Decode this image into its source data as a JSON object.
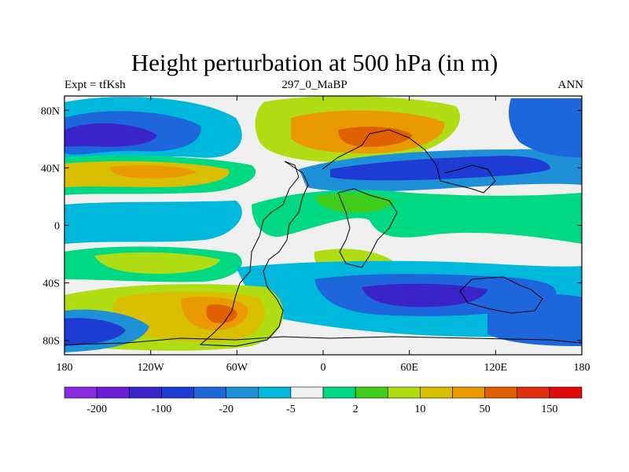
{
  "title": "Height perturbation at 500 hPa (in m)",
  "subtitle_left": "Expt = tfKsh",
  "subtitle_center": "297_0_MaBP",
  "subtitle_right": "ANN",
  "map": {
    "projection": "cylindrical equidistant",
    "lon_range": [
      -180,
      180
    ],
    "lat_range": [
      -90,
      90
    ],
    "lon_ticks": [
      "180",
      "120W",
      "60W",
      "0",
      "60E",
      "120E",
      "180"
    ],
    "lat_ticks": [
      "80N",
      "40N",
      "0",
      "40S",
      "80S"
    ]
  },
  "colorbar": {
    "colors": [
      "#8a2be2",
      "#6a1fd6",
      "#3a23c8",
      "#1e3cd4",
      "#1e66dc",
      "#1e90d8",
      "#00b8dc",
      "#f0f0f0",
      "#00d882",
      "#40cc1a",
      "#b0dc14",
      "#d8c000",
      "#e89a00",
      "#e06000",
      "#e03010",
      "#e00a0a"
    ],
    "tick_labels": [
      "-200",
      "-100",
      "-20",
      "-5",
      "2",
      "10",
      "50",
      "150"
    ]
  },
  "chart_data": {
    "type": "heatmap",
    "title": "Height perturbation at 500 hPa (in m)",
    "variable": "500 hPa geopotential height perturbation",
    "units": "m",
    "experiment": "tfKsh",
    "case": "297_0_MaBP",
    "season": "ANN",
    "contour_colors": "see colorbar",
    "features": [
      {
        "region": "North Pacific / W America 60N",
        "sign": "negative",
        "approx_m": -30
      },
      {
        "region": "Asia 60N",
        "sign": "positive",
        "approx_m": 100
      },
      {
        "region": "Eurasia/Asia 40N band",
        "sign": "negative",
        "approx_m": -40
      },
      {
        "region": "Pacific 40N",
        "sign": "positive",
        "approx_m": 40
      },
      {
        "region": "Southern ocean 70S 60W",
        "sign": "positive",
        "approx_m": 120
      },
      {
        "region": "Southern ocean 60S 0-120E",
        "sign": "negative",
        "approx_m": -40
      },
      {
        "region": "S Pacific 70S 180",
        "sign": "negative",
        "approx_m": -40
      }
    ]
  }
}
